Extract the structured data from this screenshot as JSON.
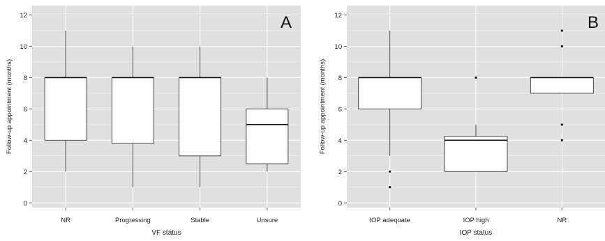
{
  "colors": {
    "panel_bg": "#e0e0e0",
    "grid": "#ffffff",
    "box_fill": "#ffffff",
    "box_stroke": "#333333",
    "text": "#222222"
  },
  "chart_data": [
    {
      "type": "box",
      "panel_label": "A",
      "title": "",
      "xlabel": "VF status",
      "ylabel": "Follow-up appointment (months)",
      "ylim": [
        -0.3,
        12.6
      ],
      "yticks": [
        0,
        2,
        4,
        6,
        8,
        10,
        12
      ],
      "categories": [
        "NR",
        "Progressing",
        "Stable",
        "Unsure"
      ],
      "boxes": [
        {
          "min": 2,
          "q1": 4,
          "median": 8,
          "q3": 8,
          "max": 11,
          "outliers": []
        },
        {
          "min": 1,
          "q1": 3.8,
          "median": 8,
          "q3": 8,
          "max": 10,
          "outliers": []
        },
        {
          "min": 1,
          "q1": 3,
          "median": 8,
          "q3": 8,
          "max": 10,
          "outliers": []
        },
        {
          "min": 2,
          "q1": 2.5,
          "median": 5,
          "q3": 6,
          "max": 8,
          "outliers": []
        }
      ],
      "grid": true
    },
    {
      "type": "box",
      "panel_label": "B",
      "title": "",
      "xlabel": "IOP status",
      "ylabel": "Follow-up appointment (months)",
      "ylim": [
        -0.3,
        12.6
      ],
      "yticks": [
        0,
        2,
        4,
        6,
        8,
        10,
        12
      ],
      "categories": [
        "IOP adequate",
        "IOP high",
        "NR"
      ],
      "boxes": [
        {
          "min": 3,
          "q1": 6,
          "median": 8,
          "q3": 8,
          "max": 11,
          "outliers": [
            2,
            1
          ]
        },
        {
          "min": 2,
          "q1": 2,
          "median": 4,
          "q3": 4.25,
          "max": 5,
          "outliers": [
            8
          ]
        },
        {
          "min": 7,
          "q1": 7,
          "median": 8,
          "q3": 8,
          "max": 8,
          "outliers": [
            11,
            10,
            5,
            4
          ]
        }
      ],
      "grid": true
    }
  ]
}
